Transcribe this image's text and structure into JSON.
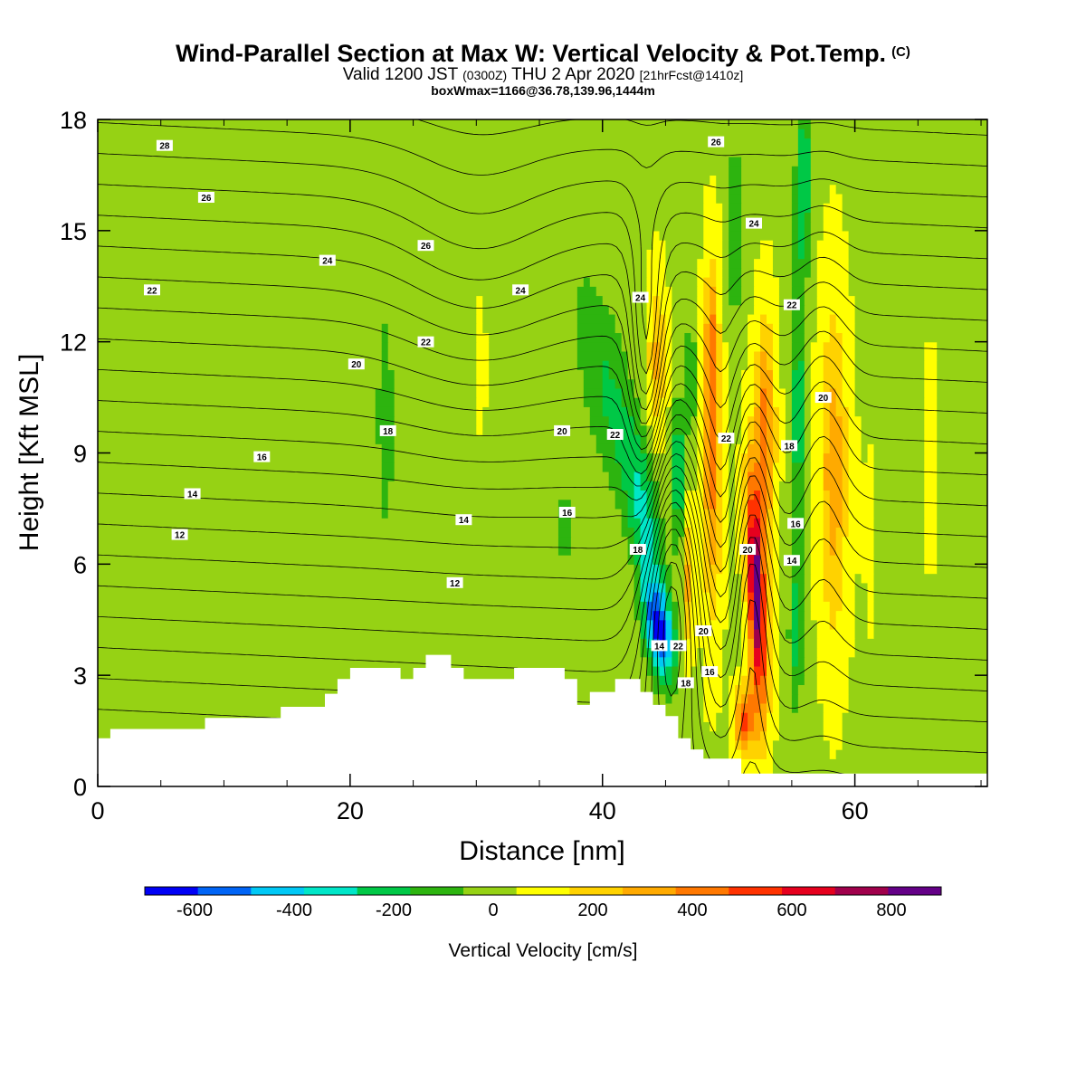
{
  "titles": {
    "main": "Wind-Parallel Section at Max W: Vertical Velocity & Pot.Temp.",
    "copyright": "(C)",
    "valid_prefix": "Valid 1200 JST",
    "valid_z": "(0300Z)",
    "valid_date": "THU 2 Apr 2020",
    "forecast": "[21hrFcst@1410z]",
    "box": "boxWmax=1166@36.78,139.96,1444m"
  },
  "chart_data": {
    "type": "heatmap",
    "xlabel": "Distance [nm]",
    "ylabel": "Height [Kft MSL]",
    "xlim": [
      0,
      70.5
    ],
    "ylim": [
      0,
      18
    ],
    "x_ticks": [
      0,
      20,
      40,
      60
    ],
    "y_ticks": [
      0,
      3,
      6,
      9,
      12,
      15,
      18
    ],
    "colorbar": {
      "title": "Vertical Velocity [cm/s]",
      "ticks": [
        -600,
        -400,
        -200,
        0,
        200,
        400,
        600,
        800
      ],
      "range": [
        -700,
        900
      ],
      "colors": [
        "#0000f5",
        "#0064f5",
        "#00c8f5",
        "#00e6c8",
        "#00c846",
        "#2db40f",
        "#96d214",
        "#ffff00",
        "#ffd200",
        "#ffaa00",
        "#ff7800",
        "#ff3200",
        "#e6001e",
        "#a0004b",
        "#640087"
      ]
    },
    "terrain_kft": [
      [
        0,
        1.3
      ],
      [
        1,
        1.3
      ],
      [
        1,
        1.55
      ],
      [
        8.5,
        1.55
      ],
      [
        8.5,
        1.85
      ],
      [
        14.5,
        1.85
      ],
      [
        14.5,
        2.15
      ],
      [
        18,
        2.15
      ],
      [
        18,
        2.5
      ],
      [
        19,
        2.5
      ],
      [
        19,
        2.9
      ],
      [
        20,
        2.9
      ],
      [
        20,
        3.2
      ],
      [
        24,
        3.2
      ],
      [
        24,
        2.9
      ],
      [
        25,
        2.9
      ],
      [
        25,
        3.2
      ],
      [
        26,
        3.2
      ],
      [
        26,
        3.55
      ],
      [
        28,
        3.55
      ],
      [
        28,
        3.2
      ],
      [
        29,
        3.2
      ],
      [
        29,
        2.9
      ],
      [
        33,
        2.9
      ],
      [
        33,
        3.2
      ],
      [
        37,
        3.2
      ],
      [
        37,
        2.9
      ],
      [
        38,
        2.9
      ],
      [
        38,
        2.2
      ],
      [
        39,
        2.2
      ],
      [
        39,
        2.55
      ],
      [
        41,
        2.55
      ],
      [
        41,
        2.9
      ],
      [
        43,
        2.9
      ],
      [
        43,
        2.55
      ],
      [
        44,
        2.55
      ],
      [
        44,
        2.2
      ],
      [
        45,
        2.2
      ],
      [
        45,
        1.9
      ],
      [
        46,
        1.9
      ],
      [
        46,
        1.3
      ],
      [
        47,
        1.3
      ],
      [
        47,
        1.0
      ],
      [
        48,
        1.0
      ],
      [
        48,
        0.75
      ],
      [
        51,
        0.75
      ],
      [
        51,
        0.35
      ],
      [
        70.5,
        0.35
      ]
    ],
    "w_features": [
      {
        "x": 44.5,
        "y": 4.2,
        "sx": 1.1,
        "sy": 1.3,
        "tilt": -0.35,
        "amp": -620
      },
      {
        "x": 43.4,
        "y": 7.0,
        "sx": 1.3,
        "sy": 2.5,
        "tilt": -0.35,
        "amp": -300
      },
      {
        "x": 46.0,
        "y": 8.5,
        "sx": 0.5,
        "sy": 1.8,
        "tilt": 0,
        "amp": -350
      },
      {
        "x": 47.0,
        "y": 11.0,
        "sx": 0.5,
        "sy": 1.6,
        "tilt": 0,
        "amp": -200
      },
      {
        "x": 40.5,
        "y": 10.5,
        "sx": 2.0,
        "sy": 3.0,
        "tilt": -0.5,
        "amp": -210
      },
      {
        "x": 37.0,
        "y": 7.0,
        "sx": 0.5,
        "sy": 1.4,
        "tilt": 0,
        "amp": -160
      },
      {
        "x": 22.8,
        "y": 9.5,
        "sx": 0.7,
        "sy": 3.0,
        "tilt": 0,
        "amp": -150
      },
      {
        "x": 48.7,
        "y": 9.0,
        "sx": 0.75,
        "sy": 4.3,
        "tilt": 0,
        "amp": 380
      },
      {
        "x": 48.6,
        "y": 12.5,
        "sx": 0.4,
        "sy": 1.4,
        "tilt": 0,
        "amp": 200
      },
      {
        "x": 52.2,
        "y": 5.2,
        "sx": 0.7,
        "sy": 3.2,
        "tilt": -0.12,
        "amp": 820
      },
      {
        "x": 52.9,
        "y": 9.5,
        "sx": 0.8,
        "sy": 3.0,
        "tilt": 0,
        "amp": 400
      },
      {
        "x": 51.3,
        "y": 1.8,
        "sx": 0.8,
        "sy": 0.9,
        "tilt": 0,
        "amp": 480
      },
      {
        "x": 44.3,
        "y": 11.5,
        "sx": 0.7,
        "sy": 2.2,
        "tilt": 0,
        "amp": 250
      },
      {
        "x": 46.8,
        "y": 5.5,
        "sx": 0.4,
        "sy": 2.0,
        "tilt": 0,
        "amp": 250
      },
      {
        "x": 30.3,
        "y": 11.5,
        "sx": 0.4,
        "sy": 1.5,
        "tilt": 0,
        "amp": 120
      },
      {
        "x": 58.3,
        "y": 8.5,
        "sx": 1.1,
        "sy": 4.5,
        "tilt": 0,
        "amp": 300
      },
      {
        "x": 55.5,
        "y": 10.0,
        "sx": 0.6,
        "sy": 5.0,
        "tilt": 0,
        "amp": -250
      },
      {
        "x": 55.3,
        "y": 4.0,
        "sx": 0.6,
        "sy": 2.0,
        "tilt": 0,
        "amp": -180
      },
      {
        "x": 56.0,
        "y": 16.5,
        "sx": 0.6,
        "sy": 2.5,
        "tilt": 0,
        "amp": -260
      },
      {
        "x": 50.5,
        "y": 15.0,
        "sx": 0.6,
        "sy": 3.5,
        "tilt": 0,
        "amp": -150
      },
      {
        "x": 5.0,
        "y": 12.0,
        "sx": 9.0,
        "sy": 5.0,
        "tilt": 0,
        "amp": -55
      },
      {
        "x": 15.0,
        "y": 13.0,
        "sx": 4.0,
        "sy": 5.0,
        "tilt": 0,
        "amp": -50
      },
      {
        "x": 22.0,
        "y": 14.5,
        "sx": 2.5,
        "sy": 4.0,
        "tilt": 0,
        "amp": -50
      },
      {
        "x": 35.0,
        "y": 15.0,
        "sx": 5.0,
        "sy": 3.0,
        "tilt": 0,
        "amp": -45
      },
      {
        "x": 27.5,
        "y": 6.0,
        "sx": 1.3,
        "sy": 3.5,
        "tilt": 0,
        "amp": -50
      },
      {
        "x": 63.0,
        "y": 10.0,
        "sx": 2.0,
        "sy": 6.0,
        "tilt": 0,
        "amp": -45
      },
      {
        "x": 68.5,
        "y": 9.0,
        "sx": 1.5,
        "sy": 6.0,
        "tilt": 0,
        "amp": -45
      },
      {
        "x": 21.0,
        "y": 16.0,
        "sx": 1.5,
        "sy": 3.0,
        "tilt": 0,
        "amp": 40
      },
      {
        "x": 61.5,
        "y": 8.0,
        "sx": 1.2,
        "sy": 6.0,
        "tilt": 0,
        "amp": 40
      },
      {
        "x": 66.0,
        "y": 9.0,
        "sx": 1.2,
        "sy": 5.0,
        "tilt": 0,
        "amp": 35
      }
    ],
    "theta_contours": {
      "interval": 1,
      "labels": [
        {
          "x": 5.3,
          "y": 17.3,
          "text": "28"
        },
        {
          "x": 8.6,
          "y": 15.9,
          "text": "26"
        },
        {
          "x": 18.2,
          "y": 14.2,
          "text": "24"
        },
        {
          "x": 4.3,
          "y": 13.4,
          "text": "22"
        },
        {
          "x": 20.5,
          "y": 11.4,
          "text": "20"
        },
        {
          "x": 23.0,
          "y": 9.6,
          "text": "18"
        },
        {
          "x": 13.0,
          "y": 8.9,
          "text": "16"
        },
        {
          "x": 7.5,
          "y": 7.9,
          "text": "14"
        },
        {
          "x": 6.5,
          "y": 6.8,
          "text": "12"
        },
        {
          "x": 26.0,
          "y": 14.6,
          "text": "26"
        },
        {
          "x": 26.0,
          "y": 12.0,
          "text": "22"
        },
        {
          "x": 33.5,
          "y": 13.4,
          "text": "24"
        },
        {
          "x": 29.0,
          "y": 7.2,
          "text": "14"
        },
        {
          "x": 28.3,
          "y": 5.5,
          "text": "12"
        },
        {
          "x": 36.8,
          "y": 9.6,
          "text": "20"
        },
        {
          "x": 41.0,
          "y": 9.5,
          "text": "22"
        },
        {
          "x": 37.2,
          "y": 7.4,
          "text": "16"
        },
        {
          "x": 42.8,
          "y": 6.4,
          "text": "18"
        },
        {
          "x": 43.0,
          "y": 13.2,
          "text": "24"
        },
        {
          "x": 44.5,
          "y": 3.8,
          "text": "14"
        },
        {
          "x": 46.0,
          "y": 3.8,
          "text": "22"
        },
        {
          "x": 48.0,
          "y": 4.2,
          "text": "20"
        },
        {
          "x": 46.6,
          "y": 2.8,
          "text": "18"
        },
        {
          "x": 48.5,
          "y": 3.1,
          "text": "16"
        },
        {
          "x": 49.0,
          "y": 17.4,
          "text": "26"
        },
        {
          "x": 52.0,
          "y": 15.2,
          "text": "24"
        },
        {
          "x": 49.8,
          "y": 9.4,
          "text": "22"
        },
        {
          "x": 51.5,
          "y": 6.4,
          "text": "20"
        },
        {
          "x": 55.0,
          "y": 13.0,
          "text": "22"
        },
        {
          "x": 57.5,
          "y": 10.5,
          "text": "20"
        },
        {
          "x": 54.8,
          "y": 9.2,
          "text": "18"
        },
        {
          "x": 55.3,
          "y": 7.1,
          "text": "16"
        },
        {
          "x": 55.0,
          "y": 6.1,
          "text": "14"
        }
      ]
    }
  }
}
